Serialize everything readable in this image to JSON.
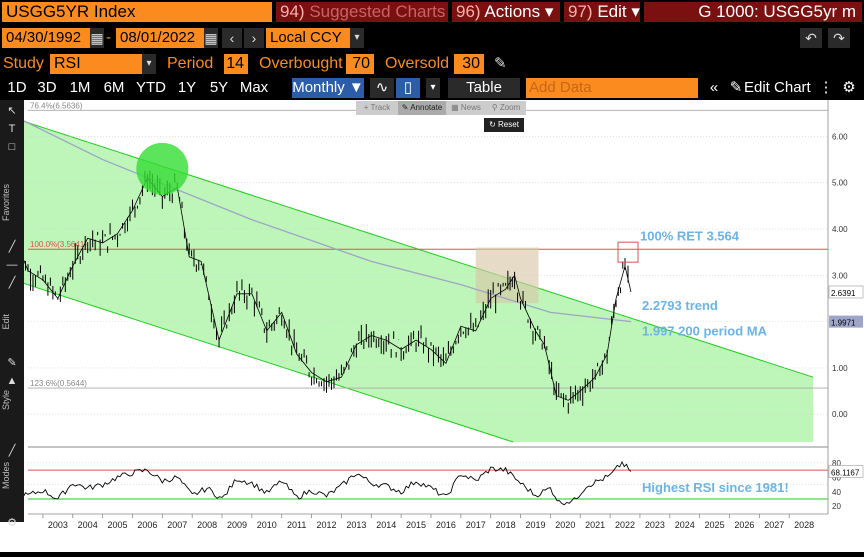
{
  "header": {
    "ticker": "USGG5YR Index",
    "menu1_num": "94)",
    "menu1_label": "Suggested Charts",
    "menu2_num": "96)",
    "menu2_label": "Actions ▾",
    "menu3_num": "97)",
    "menu3_label": "Edit ▾",
    "window_title": "G 1000: USGG5yr m"
  },
  "range": {
    "start_date": "04/30/1992",
    "end_date": "08/01/2022",
    "currency": "Local CCY"
  },
  "study_bar": {
    "study_label": "Study",
    "study_value": "RSI",
    "period_label": "Period",
    "period_value": "14",
    "overbought_label": "Overbought",
    "overbought_value": "70",
    "oversold_label": "Oversold",
    "oversold_value": "30"
  },
  "toolbar": {
    "timeframes": [
      "1D",
      "3D",
      "1M",
      "6M",
      "YTD",
      "1Y",
      "5Y",
      "Max"
    ],
    "frequency": "Monthly ▼",
    "table_label": "Table",
    "add_data_placeholder": "Add Data",
    "edit_chart_label": "Edit Chart"
  },
  "mini_toolbar": {
    "track": "Track",
    "annotate": "Annotate",
    "news": "News",
    "zoom": "Zoom",
    "reset": "Reset"
  },
  "sidebar": {
    "favorites": "Favorites",
    "edit": "Edit",
    "style": "Style",
    "modes": "Modes"
  },
  "chart_data": {
    "type": "line",
    "main_panel": {
      "y_ticks": [
        0,
        1,
        2,
        3,
        4,
        5,
        6
      ],
      "y_tick_labels": [
        "0.00",
        "1.00",
        "2.00",
        "3.00",
        "4.00",
        "5.00",
        "6.00"
      ],
      "ylim": [
        -0.6,
        6.7
      ],
      "last_price_label": "2.6391",
      "ma_label_value": "1.9971",
      "fib_labels": {
        "top": "76.4%(6.5636)",
        "mid": "100.0%(3.5641)",
        "low": "123.6%(0.5644)"
      },
      "annotations": {
        "ret": "100% RET 3.564",
        "trend": "2.2793  trend",
        "ma": "1.997 200 period MA"
      },
      "price_series": [
        {
          "year": 2002.0,
          "value": 3.9
        },
        {
          "year": 2002.5,
          "value": 3.1
        },
        {
          "year": 2003.0,
          "value": 2.9
        },
        {
          "year": 2003.5,
          "value": 2.5
        },
        {
          "year": 2004.0,
          "value": 3.2
        },
        {
          "year": 2004.5,
          "value": 3.8
        },
        {
          "year": 2005.0,
          "value": 3.7
        },
        {
          "year": 2005.5,
          "value": 3.9
        },
        {
          "year": 2006.0,
          "value": 4.4
        },
        {
          "year": 2006.5,
          "value": 5.1
        },
        {
          "year": 2007.0,
          "value": 4.7
        },
        {
          "year": 2007.5,
          "value": 4.9
        },
        {
          "year": 2007.9,
          "value": 3.4
        },
        {
          "year": 2008.3,
          "value": 3.3
        },
        {
          "year": 2008.9,
          "value": 1.6
        },
        {
          "year": 2009.5,
          "value": 2.6
        },
        {
          "year": 2010.0,
          "value": 2.6
        },
        {
          "year": 2010.5,
          "value": 1.8
        },
        {
          "year": 2011.0,
          "value": 2.2
        },
        {
          "year": 2011.5,
          "value": 1.3
        },
        {
          "year": 2012.0,
          "value": 0.9
        },
        {
          "year": 2012.5,
          "value": 0.7
        },
        {
          "year": 2013.0,
          "value": 0.8
        },
        {
          "year": 2013.5,
          "value": 1.5
        },
        {
          "year": 2014.0,
          "value": 1.7
        },
        {
          "year": 2014.5,
          "value": 1.6
        },
        {
          "year": 2015.0,
          "value": 1.4
        },
        {
          "year": 2015.5,
          "value": 1.6
        },
        {
          "year": 2016.0,
          "value": 1.4
        },
        {
          "year": 2016.5,
          "value": 1.1
        },
        {
          "year": 2017.0,
          "value": 1.9
        },
        {
          "year": 2017.5,
          "value": 1.8
        },
        {
          "year": 2018.0,
          "value": 2.5
        },
        {
          "year": 2018.5,
          "value": 2.7
        },
        {
          "year": 2018.8,
          "value": 3.0
        },
        {
          "year": 2019.0,
          "value": 2.5
        },
        {
          "year": 2019.5,
          "value": 1.8
        },
        {
          "year": 2019.8,
          "value": 1.5
        },
        {
          "year": 2020.2,
          "value": 0.4
        },
        {
          "year": 2020.6,
          "value": 0.3
        },
        {
          "year": 2021.0,
          "value": 0.5
        },
        {
          "year": 2021.5,
          "value": 0.8
        },
        {
          "year": 2021.9,
          "value": 1.3
        },
        {
          "year": 2022.2,
          "value": 2.5
        },
        {
          "year": 2022.5,
          "value": 3.2
        },
        {
          "year": 2022.7,
          "value": 2.64
        }
      ],
      "ma_series": [
        {
          "year": 2002.0,
          "value": 6.45
        },
        {
          "year": 2005.0,
          "value": 5.5
        },
        {
          "year": 2010.0,
          "value": 4.2
        },
        {
          "year": 2014.0,
          "value": 3.3
        },
        {
          "year": 2017.0,
          "value": 2.8
        },
        {
          "year": 2020.0,
          "value": 2.2
        },
        {
          "year": 2022.7,
          "value": 2.0
        }
      ],
      "channel": {
        "upper": [
          {
            "year": 2002.0,
            "value": 6.4
          },
          {
            "year": 2028.8,
            "value": 0.8
          }
        ],
        "lower": [
          {
            "year": 2002.0,
            "value": 2.9
          },
          {
            "year": 2013.5,
            "value": 0.6
          }
        ]
      }
    },
    "rsi_panel": {
      "y_ticks": [
        20,
        40,
        60,
        80
      ],
      "ylim": [
        12,
        95
      ],
      "last_value_label": "68.1167",
      "overbought": 70,
      "oversold": 30,
      "annotation": "Highest RSI since 1981!",
      "series": [
        {
          "year": 2002.0,
          "value": 38
        },
        {
          "year": 2002.5,
          "value": 35
        },
        {
          "year": 2003.0,
          "value": 42
        },
        {
          "year": 2003.5,
          "value": 30
        },
        {
          "year": 2004.0,
          "value": 52
        },
        {
          "year": 2004.5,
          "value": 45
        },
        {
          "year": 2005.0,
          "value": 50
        },
        {
          "year": 2005.5,
          "value": 60
        },
        {
          "year": 2006.0,
          "value": 66
        },
        {
          "year": 2006.5,
          "value": 70
        },
        {
          "year": 2007.0,
          "value": 55
        },
        {
          "year": 2007.5,
          "value": 60
        },
        {
          "year": 2008.0,
          "value": 35
        },
        {
          "year": 2008.5,
          "value": 45
        },
        {
          "year": 2009.0,
          "value": 30
        },
        {
          "year": 2009.5,
          "value": 58
        },
        {
          "year": 2010.0,
          "value": 52
        },
        {
          "year": 2010.5,
          "value": 38
        },
        {
          "year": 2011.0,
          "value": 55
        },
        {
          "year": 2011.5,
          "value": 32
        },
        {
          "year": 2012.0,
          "value": 42
        },
        {
          "year": 2012.5,
          "value": 34
        },
        {
          "year": 2013.0,
          "value": 48
        },
        {
          "year": 2013.5,
          "value": 66
        },
        {
          "year": 2014.0,
          "value": 52
        },
        {
          "year": 2014.5,
          "value": 48
        },
        {
          "year": 2015.0,
          "value": 40
        },
        {
          "year": 2015.5,
          "value": 55
        },
        {
          "year": 2016.0,
          "value": 45
        },
        {
          "year": 2016.5,
          "value": 32
        },
        {
          "year": 2017.0,
          "value": 65
        },
        {
          "year": 2017.5,
          "value": 55
        },
        {
          "year": 2018.0,
          "value": 72
        },
        {
          "year": 2018.5,
          "value": 70
        },
        {
          "year": 2019.0,
          "value": 52
        },
        {
          "year": 2019.5,
          "value": 35
        },
        {
          "year": 2020.0,
          "value": 45
        },
        {
          "year": 2020.3,
          "value": 25
        },
        {
          "year": 2020.8,
          "value": 28
        },
        {
          "year": 2021.2,
          "value": 48
        },
        {
          "year": 2021.6,
          "value": 55
        },
        {
          "year": 2022.0,
          "value": 62
        },
        {
          "year": 2022.4,
          "value": 80
        },
        {
          "year": 2022.7,
          "value": 68.1
        }
      ]
    },
    "x_axis": {
      "xlim": [
        2002.5,
        2029.3
      ],
      "tick_labels": [
        "2003",
        "2004",
        "2005",
        "2006",
        "2007",
        "2008",
        "2009",
        "2010",
        "2011",
        "2012",
        "2013",
        "2014",
        "2015",
        "2016",
        "2017",
        "2018",
        "2019",
        "2020",
        "2021",
        "2022",
        "2023",
        "2024",
        "2025",
        "2026",
        "2027",
        "2028"
      ]
    },
    "highlights": {
      "green_circle": {
        "year": 2007.0,
        "value": 5.3
      },
      "red_square": {
        "year": 2022.6,
        "value": 3.5
      },
      "tan_box": {
        "year_from": 2017.5,
        "year_to": 2019.6,
        "value_from": 2.4,
        "value_to": 3.6
      }
    },
    "colors": {
      "channel_fill": "#a8f2a0",
      "channel_line": "#22cc22",
      "ma": "#9ea5c8",
      "fib": "#e05050",
      "price": "#000000",
      "annotation": "#6cb4e8",
      "brand_orange": "#fb8b1e"
    }
  }
}
